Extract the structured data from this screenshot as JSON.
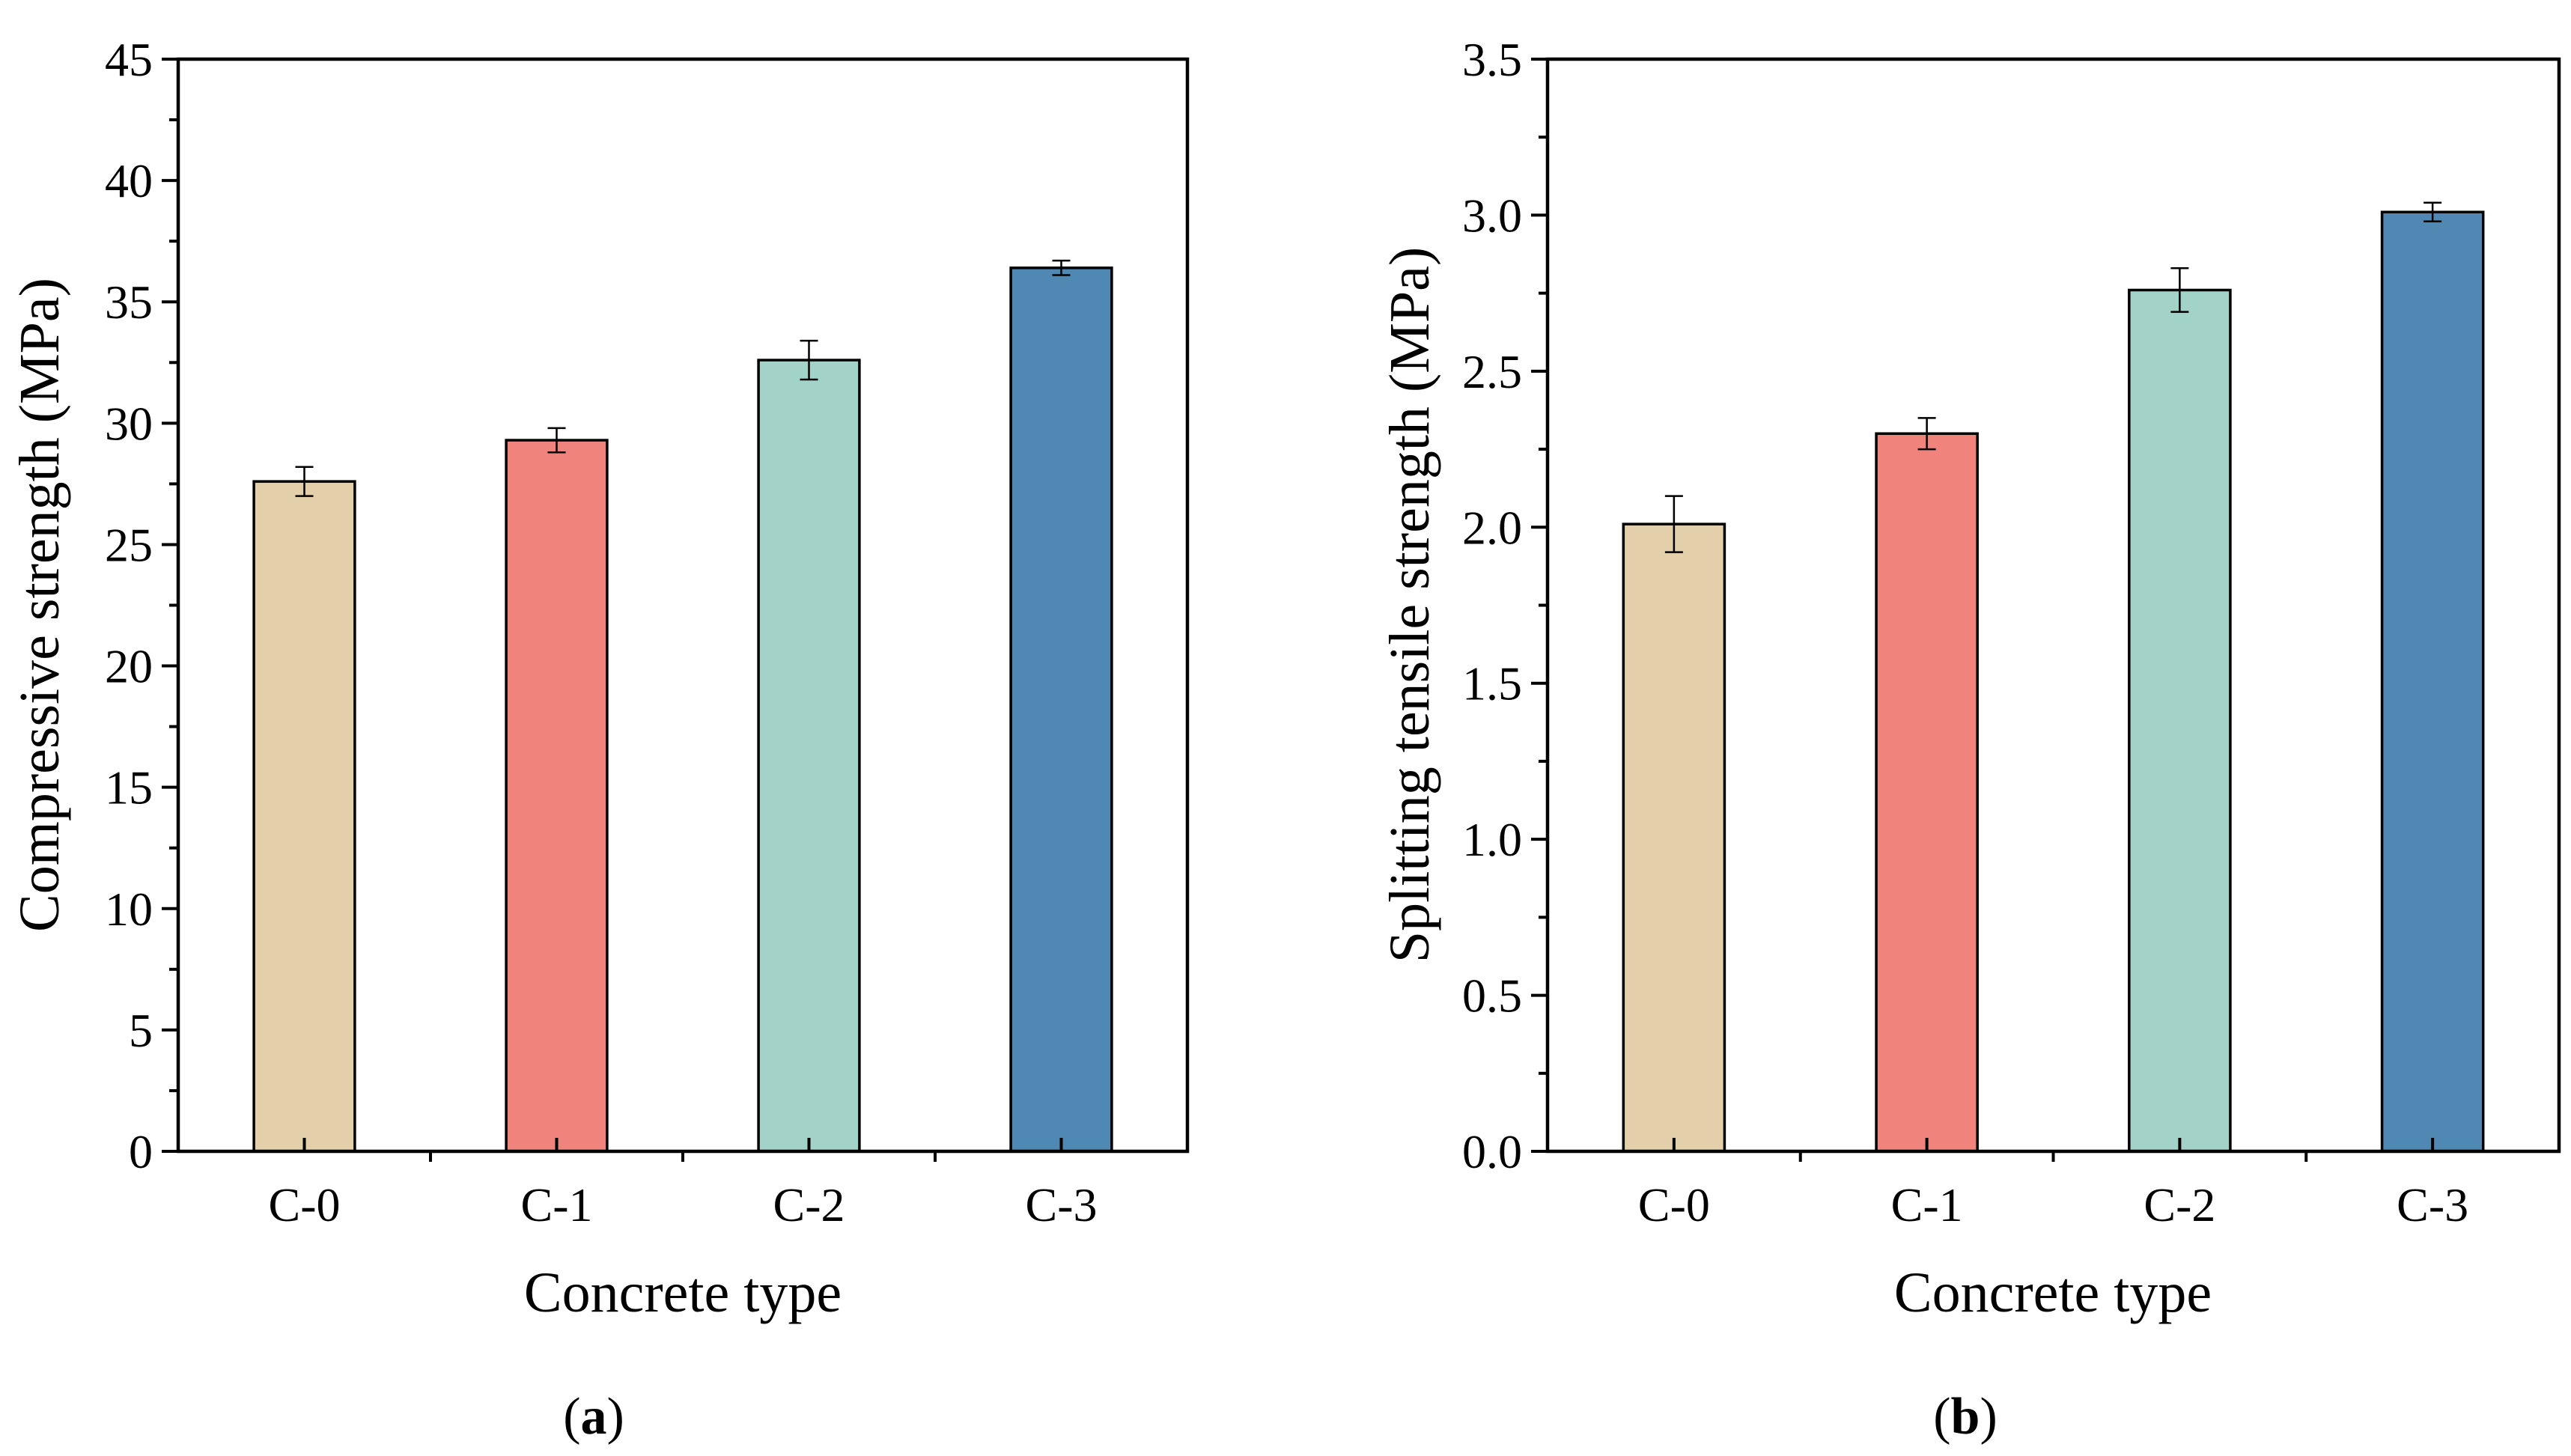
{
  "chart_data": [
    {
      "type": "bar",
      "panel_label": "a",
      "categories": [
        "C-0",
        "C-1",
        "C-2",
        "C-3"
      ],
      "values": [
        27.6,
        29.3,
        32.6,
        36.4
      ],
      "errors": [
        0.6,
        0.5,
        0.8,
        0.3
      ],
      "colors": [
        "#E3CFA9",
        "#F0837B",
        "#A3D3C8",
        "#4F89B3"
      ],
      "xlabel": "Concrete type",
      "ylabel": "Compressive strength (MPa)",
      "ylim": [
        0,
        45
      ],
      "major_ticks": [
        0,
        5,
        10,
        15,
        20,
        25,
        30,
        35,
        40,
        45
      ],
      "minor_ticks": [
        2.5,
        7.5,
        12.5,
        17.5,
        22.5,
        27.5,
        32.5,
        37.5,
        42.5
      ],
      "tick_decimals": 0,
      "grid": false,
      "legend": false
    },
    {
      "type": "bar",
      "panel_label": "b",
      "categories": [
        "C-0",
        "C-1",
        "C-2",
        "C-3"
      ],
      "values": [
        2.01,
        2.3,
        2.76,
        3.01
      ],
      "errors": [
        0.09,
        0.05,
        0.07,
        0.03
      ],
      "colors": [
        "#E3CFA9",
        "#F0837B",
        "#A3D3C8",
        "#4F89B3"
      ],
      "xlabel": "Concrete type",
      "ylabel": "Splitting tensile strength (MPa)",
      "ylim": [
        0,
        3.5
      ],
      "major_ticks": [
        0,
        0.5,
        1,
        1.5,
        2,
        2.5,
        3,
        3.5
      ],
      "minor_ticks": [
        0.25,
        0.75,
        1.25,
        1.75,
        2.25,
        2.75,
        3.25
      ],
      "tick_decimals": 1,
      "grid": false,
      "legend": false
    }
  ]
}
